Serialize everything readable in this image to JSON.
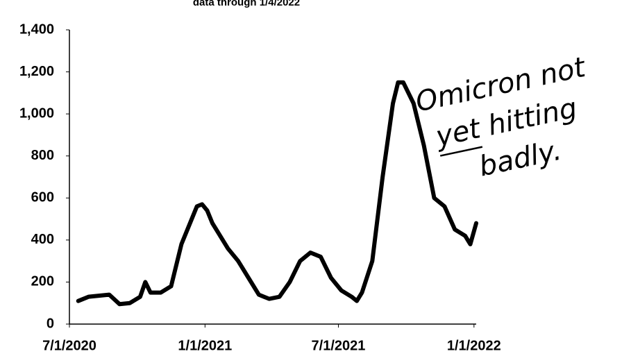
{
  "chart_data": {
    "type": "line",
    "title": "data through 1/4/2022",
    "annotations": [
      "Omicron not",
      "yet hitting",
      "badly."
    ],
    "x": [
      "7/13/2020",
      "7/27/2020",
      "8/10/2020",
      "8/24/2020",
      "9/7/2020",
      "9/21/2020",
      "10/5/2020",
      "10/12/2020",
      "10/19/2020",
      "11/2/2020",
      "11/16/2020",
      "11/30/2020",
      "12/14/2020",
      "12/21/2020",
      "12/28/2020",
      "1/4/2021",
      "1/11/2021",
      "1/18/2021",
      "2/1/2021",
      "2/15/2021",
      "3/1/2021",
      "3/15/2021",
      "3/29/2021",
      "4/12/2021",
      "4/26/2021",
      "5/10/2021",
      "5/24/2021",
      "6/7/2021",
      "6/21/2021",
      "7/5/2021",
      "7/19/2021",
      "7/26/2021",
      "8/2/2021",
      "8/16/2021",
      "8/30/2021",
      "9/13/2021",
      "9/20/2021",
      "9/27/2021",
      "10/11/2021",
      "10/25/2021",
      "11/8/2021",
      "11/22/2021",
      "12/6/2021",
      "12/20/2021",
      "12/27/2021",
      "1/4/2022"
    ],
    "series": [
      {
        "color": "#000000",
        "values": [
          110,
          130,
          135,
          140,
          95,
          100,
          130,
          200,
          150,
          150,
          180,
          380,
          500,
          560,
          570,
          540,
          480,
          440,
          360,
          300,
          220,
          140,
          120,
          130,
          200,
          300,
          340,
          320,
          220,
          160,
          130,
          110,
          150,
          300,
          700,
          1050,
          1150,
          1150,
          1050,
          850,
          600,
          560,
          450,
          420,
          380,
          480
        ]
      }
    ],
    "xlim": [
      "7/1/2020",
      "1/4/2022"
    ],
    "xticks": [
      "7/1/2020",
      "1/1/2021",
      "7/1/2021",
      "1/1/2022"
    ],
    "ylim": [
      0,
      1400
    ],
    "yticks": [
      0,
      200,
      400,
      600,
      800,
      {
        "value": 1000,
        "label": "1,000"
      },
      {
        "value": 1200,
        "label": "1,200"
      },
      {
        "value": 1400,
        "label": "1,400"
      }
    ],
    "grid": false
  }
}
